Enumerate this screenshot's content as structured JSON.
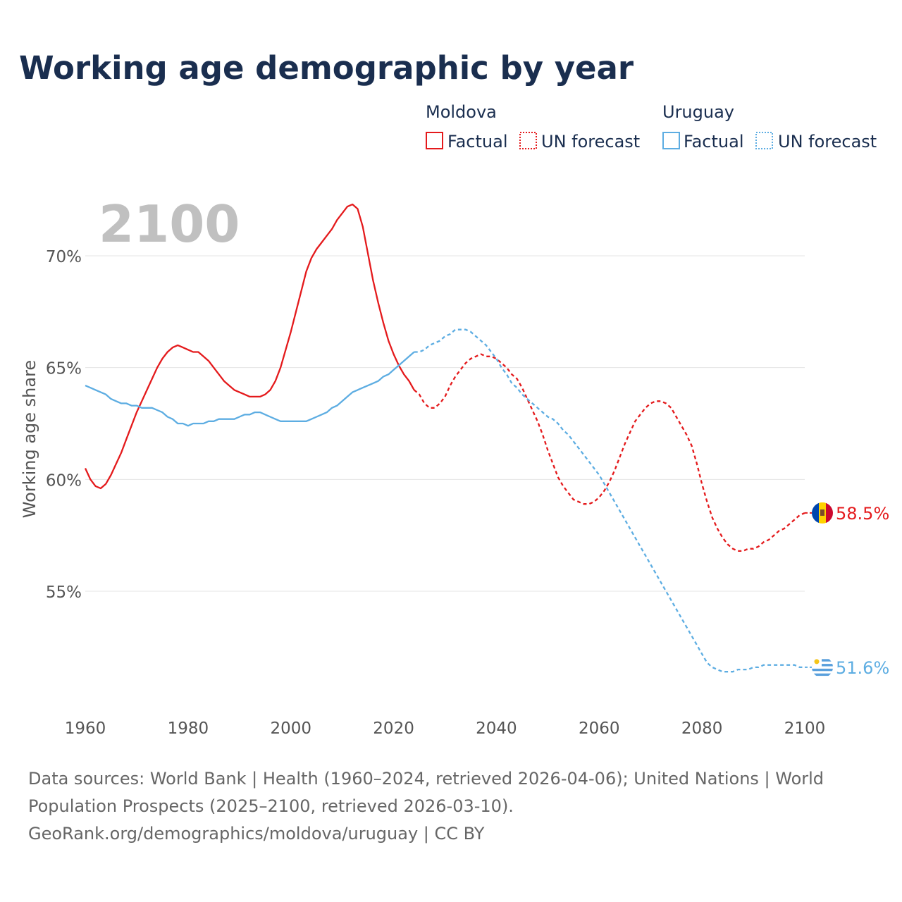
{
  "title": "Working age demographic by year",
  "year_watermark": "2100",
  "legend": {
    "groups": [
      {
        "country": "Moldova",
        "color": "#e41a1c",
        "factual_label": "Factual",
        "forecast_label": "UN forecast"
      },
      {
        "country": "Uruguay",
        "color": "#5dade2",
        "factual_label": "Factual",
        "forecast_label": "UN forecast"
      }
    ]
  },
  "footer": {
    "line1": "Data sources: World Bank | Health (1960–2024, retrieved 2026-04-06); United Nations | World",
    "line2": "Population Prospects (2025–2100, retrieved 2026-03-10).",
    "line3": "GeoRank.org/demographics/moldova/uruguay | CC BY"
  },
  "chart_data": {
    "type": "line",
    "title": "Working age demographic by year",
    "xlabel": "",
    "ylabel": "Working age share",
    "xlim": [
      1960,
      2100
    ],
    "ylim": [
      50.5,
      73.5
    ],
    "x_ticks": [
      1960,
      1980,
      2000,
      2020,
      2040,
      2060,
      2080,
      2100
    ],
    "y_ticks": [
      55,
      60,
      65,
      70
    ],
    "y_tick_labels": [
      "55%",
      "60%",
      "65%",
      "70%"
    ],
    "grid": "horizontal",
    "forecast_start": 2024,
    "series": [
      {
        "name": "Moldova",
        "color": "#e41a1c",
        "end_label": "58.5%",
        "factual": [
          [
            1960,
            60.5
          ],
          [
            1961,
            60.0
          ],
          [
            1962,
            59.7
          ],
          [
            1963,
            59.6
          ],
          [
            1964,
            59.8
          ],
          [
            1965,
            60.2
          ],
          [
            1966,
            60.7
          ],
          [
            1967,
            61.2
          ],
          [
            1968,
            61.8
          ],
          [
            1969,
            62.4
          ],
          [
            1970,
            63.0
          ],
          [
            1971,
            63.5
          ],
          [
            1972,
            64.0
          ],
          [
            1973,
            64.5
          ],
          [
            1974,
            65.0
          ],
          [
            1975,
            65.4
          ],
          [
            1976,
            65.7
          ],
          [
            1977,
            65.9
          ],
          [
            1978,
            66.0
          ],
          [
            1979,
            65.9
          ],
          [
            1980,
            65.8
          ],
          [
            1981,
            65.7
          ],
          [
            1982,
            65.7
          ],
          [
            1983,
            65.5
          ],
          [
            1984,
            65.3
          ],
          [
            1985,
            65.0
          ],
          [
            1986,
            64.7
          ],
          [
            1987,
            64.4
          ],
          [
            1988,
            64.2
          ],
          [
            1989,
            64.0
          ],
          [
            1990,
            63.9
          ],
          [
            1991,
            63.8
          ],
          [
            1992,
            63.7
          ],
          [
            1993,
            63.7
          ],
          [
            1994,
            63.7
          ],
          [
            1995,
            63.8
          ],
          [
            1996,
            64.0
          ],
          [
            1997,
            64.4
          ],
          [
            1998,
            65.0
          ],
          [
            1999,
            65.8
          ],
          [
            2000,
            66.6
          ],
          [
            2001,
            67.5
          ],
          [
            2002,
            68.4
          ],
          [
            2003,
            69.3
          ],
          [
            2004,
            69.9
          ],
          [
            2005,
            70.3
          ],
          [
            2006,
            70.6
          ],
          [
            2007,
            70.9
          ],
          [
            2008,
            71.2
          ],
          [
            2009,
            71.6
          ],
          [
            2010,
            71.9
          ],
          [
            2011,
            72.2
          ],
          [
            2012,
            72.3
          ],
          [
            2013,
            72.1
          ],
          [
            2014,
            71.3
          ],
          [
            2015,
            70.1
          ],
          [
            2016,
            68.9
          ],
          [
            2017,
            67.9
          ],
          [
            2018,
            67.0
          ],
          [
            2019,
            66.2
          ],
          [
            2020,
            65.6
          ],
          [
            2021,
            65.1
          ],
          [
            2022,
            64.7
          ],
          [
            2023,
            64.4
          ],
          [
            2024,
            64.0
          ]
        ],
        "forecast": [
          [
            2024,
            64.0
          ],
          [
            2025,
            63.8
          ],
          [
            2026,
            63.4
          ],
          [
            2027,
            63.2
          ],
          [
            2028,
            63.2
          ],
          [
            2029,
            63.4
          ],
          [
            2030,
            63.7
          ],
          [
            2031,
            64.2
          ],
          [
            2032,
            64.6
          ],
          [
            2033,
            64.9
          ],
          [
            2034,
            65.2
          ],
          [
            2035,
            65.4
          ],
          [
            2036,
            65.5
          ],
          [
            2037,
            65.6
          ],
          [
            2038,
            65.5
          ],
          [
            2039,
            65.5
          ],
          [
            2040,
            65.4
          ],
          [
            2041,
            65.2
          ],
          [
            2042,
            65.0
          ],
          [
            2043,
            64.7
          ],
          [
            2044,
            64.5
          ],
          [
            2045,
            64.1
          ],
          [
            2046,
            63.6
          ],
          [
            2047,
            63.1
          ],
          [
            2048,
            62.6
          ],
          [
            2049,
            62.0
          ],
          [
            2050,
            61.3
          ],
          [
            2051,
            60.7
          ],
          [
            2052,
            60.1
          ],
          [
            2053,
            59.7
          ],
          [
            2054,
            59.4
          ],
          [
            2055,
            59.1
          ],
          [
            2056,
            59.0
          ],
          [
            2057,
            58.9
          ],
          [
            2058,
            58.9
          ],
          [
            2059,
            59.0
          ],
          [
            2060,
            59.2
          ],
          [
            2061,
            59.5
          ],
          [
            2062,
            59.9
          ],
          [
            2063,
            60.4
          ],
          [
            2064,
            61.0
          ],
          [
            2065,
            61.6
          ],
          [
            2066,
            62.1
          ],
          [
            2067,
            62.6
          ],
          [
            2068,
            62.9
          ],
          [
            2069,
            63.2
          ],
          [
            2070,
            63.4
          ],
          [
            2071,
            63.5
          ],
          [
            2072,
            63.5
          ],
          [
            2073,
            63.4
          ],
          [
            2074,
            63.2
          ],
          [
            2075,
            62.8
          ],
          [
            2076,
            62.4
          ],
          [
            2077,
            62.0
          ],
          [
            2078,
            61.5
          ],
          [
            2079,
            60.7
          ],
          [
            2080,
            59.8
          ],
          [
            2081,
            59.0
          ],
          [
            2082,
            58.3
          ],
          [
            2083,
            57.8
          ],
          [
            2084,
            57.4
          ],
          [
            2085,
            57.1
          ],
          [
            2086,
            56.9
          ],
          [
            2087,
            56.8
          ],
          [
            2088,
            56.8
          ],
          [
            2089,
            56.9
          ],
          [
            2090,
            56.9
          ],
          [
            2091,
            57.0
          ],
          [
            2092,
            57.2
          ],
          [
            2093,
            57.3
          ],
          [
            2094,
            57.5
          ],
          [
            2095,
            57.7
          ],
          [
            2096,
            57.8
          ],
          [
            2097,
            58.0
          ],
          [
            2098,
            58.2
          ],
          [
            2099,
            58.4
          ],
          [
            2100,
            58.5
          ]
        ]
      },
      {
        "name": "Uruguay",
        "color": "#5dade2",
        "end_label": "51.6%",
        "factual": [
          [
            1960,
            64.2
          ],
          [
            1961,
            64.1
          ],
          [
            1962,
            64.0
          ],
          [
            1963,
            63.9
          ],
          [
            1964,
            63.8
          ],
          [
            1965,
            63.6
          ],
          [
            1966,
            63.5
          ],
          [
            1967,
            63.4
          ],
          [
            1968,
            63.4
          ],
          [
            1969,
            63.3
          ],
          [
            1970,
            63.3
          ],
          [
            1971,
            63.2
          ],
          [
            1972,
            63.2
          ],
          [
            1973,
            63.2
          ],
          [
            1974,
            63.1
          ],
          [
            1975,
            63.0
          ],
          [
            1976,
            62.8
          ],
          [
            1977,
            62.7
          ],
          [
            1978,
            62.5
          ],
          [
            1979,
            62.5
          ],
          [
            1980,
            62.4
          ],
          [
            1981,
            62.5
          ],
          [
            1982,
            62.5
          ],
          [
            1983,
            62.5
          ],
          [
            1984,
            62.6
          ],
          [
            1985,
            62.6
          ],
          [
            1986,
            62.7
          ],
          [
            1987,
            62.7
          ],
          [
            1988,
            62.7
          ],
          [
            1989,
            62.7
          ],
          [
            1990,
            62.8
          ],
          [
            1991,
            62.9
          ],
          [
            1992,
            62.9
          ],
          [
            1993,
            63.0
          ],
          [
            1994,
            63.0
          ],
          [
            1995,
            62.9
          ],
          [
            1996,
            62.8
          ],
          [
            1997,
            62.7
          ],
          [
            1998,
            62.6
          ],
          [
            1999,
            62.6
          ],
          [
            2000,
            62.6
          ],
          [
            2001,
            62.6
          ],
          [
            2002,
            62.6
          ],
          [
            2003,
            62.6
          ],
          [
            2004,
            62.7
          ],
          [
            2005,
            62.8
          ],
          [
            2006,
            62.9
          ],
          [
            2007,
            63.0
          ],
          [
            2008,
            63.2
          ],
          [
            2009,
            63.3
          ],
          [
            2010,
            63.5
          ],
          [
            2011,
            63.7
          ],
          [
            2012,
            63.9
          ],
          [
            2013,
            64.0
          ],
          [
            2014,
            64.1
          ],
          [
            2015,
            64.2
          ],
          [
            2016,
            64.3
          ],
          [
            2017,
            64.4
          ],
          [
            2018,
            64.6
          ],
          [
            2019,
            64.7
          ],
          [
            2020,
            64.9
          ],
          [
            2021,
            65.1
          ],
          [
            2022,
            65.3
          ],
          [
            2023,
            65.5
          ],
          [
            2024,
            65.7
          ]
        ],
        "forecast": [
          [
            2024,
            65.7
          ],
          [
            2025,
            65.7
          ],
          [
            2026,
            65.8
          ],
          [
            2027,
            66.0
          ],
          [
            2028,
            66.1
          ],
          [
            2029,
            66.2
          ],
          [
            2030,
            66.4
          ],
          [
            2031,
            66.5
          ],
          [
            2032,
            66.7
          ],
          [
            2033,
            66.7
          ],
          [
            2034,
            66.7
          ],
          [
            2035,
            66.6
          ],
          [
            2036,
            66.4
          ],
          [
            2037,
            66.2
          ],
          [
            2038,
            66.0
          ],
          [
            2039,
            65.7
          ],
          [
            2040,
            65.4
          ],
          [
            2041,
            65.0
          ],
          [
            2042,
            64.7
          ],
          [
            2043,
            64.3
          ],
          [
            2044,
            64.1
          ],
          [
            2045,
            63.8
          ],
          [
            2046,
            63.6
          ],
          [
            2047,
            63.4
          ],
          [
            2048,
            63.2
          ],
          [
            2049,
            63.0
          ],
          [
            2050,
            62.8
          ],
          [
            2051,
            62.7
          ],
          [
            2052,
            62.5
          ],
          [
            2053,
            62.2
          ],
          [
            2054,
            62.0
          ],
          [
            2055,
            61.7
          ],
          [
            2056,
            61.4
          ],
          [
            2057,
            61.1
          ],
          [
            2058,
            60.8
          ],
          [
            2059,
            60.5
          ],
          [
            2060,
            60.2
          ],
          [
            2061,
            59.8
          ],
          [
            2062,
            59.4
          ],
          [
            2063,
            59.0
          ],
          [
            2064,
            58.6
          ],
          [
            2065,
            58.2
          ],
          [
            2066,
            57.8
          ],
          [
            2067,
            57.4
          ],
          [
            2068,
            57.0
          ],
          [
            2069,
            56.6
          ],
          [
            2070,
            56.2
          ],
          [
            2071,
            55.8
          ],
          [
            2072,
            55.4
          ],
          [
            2073,
            55.0
          ],
          [
            2074,
            54.6
          ],
          [
            2075,
            54.2
          ],
          [
            2076,
            53.8
          ],
          [
            2077,
            53.4
          ],
          [
            2078,
            53.0
          ],
          [
            2079,
            52.6
          ],
          [
            2080,
            52.2
          ],
          [
            2081,
            51.8
          ],
          [
            2082,
            51.6
          ],
          [
            2083,
            51.5
          ],
          [
            2084,
            51.4
          ],
          [
            2085,
            51.4
          ],
          [
            2086,
            51.4
          ],
          [
            2087,
            51.5
          ],
          [
            2088,
            51.5
          ],
          [
            2089,
            51.5
          ],
          [
            2090,
            51.6
          ],
          [
            2091,
            51.6
          ],
          [
            2092,
            51.7
          ],
          [
            2093,
            51.7
          ],
          [
            2094,
            51.7
          ],
          [
            2095,
            51.7
          ],
          [
            2096,
            51.7
          ],
          [
            2097,
            51.7
          ],
          [
            2098,
            51.7
          ],
          [
            2099,
            51.6
          ],
          [
            2100,
            51.6
          ]
        ]
      }
    ]
  }
}
